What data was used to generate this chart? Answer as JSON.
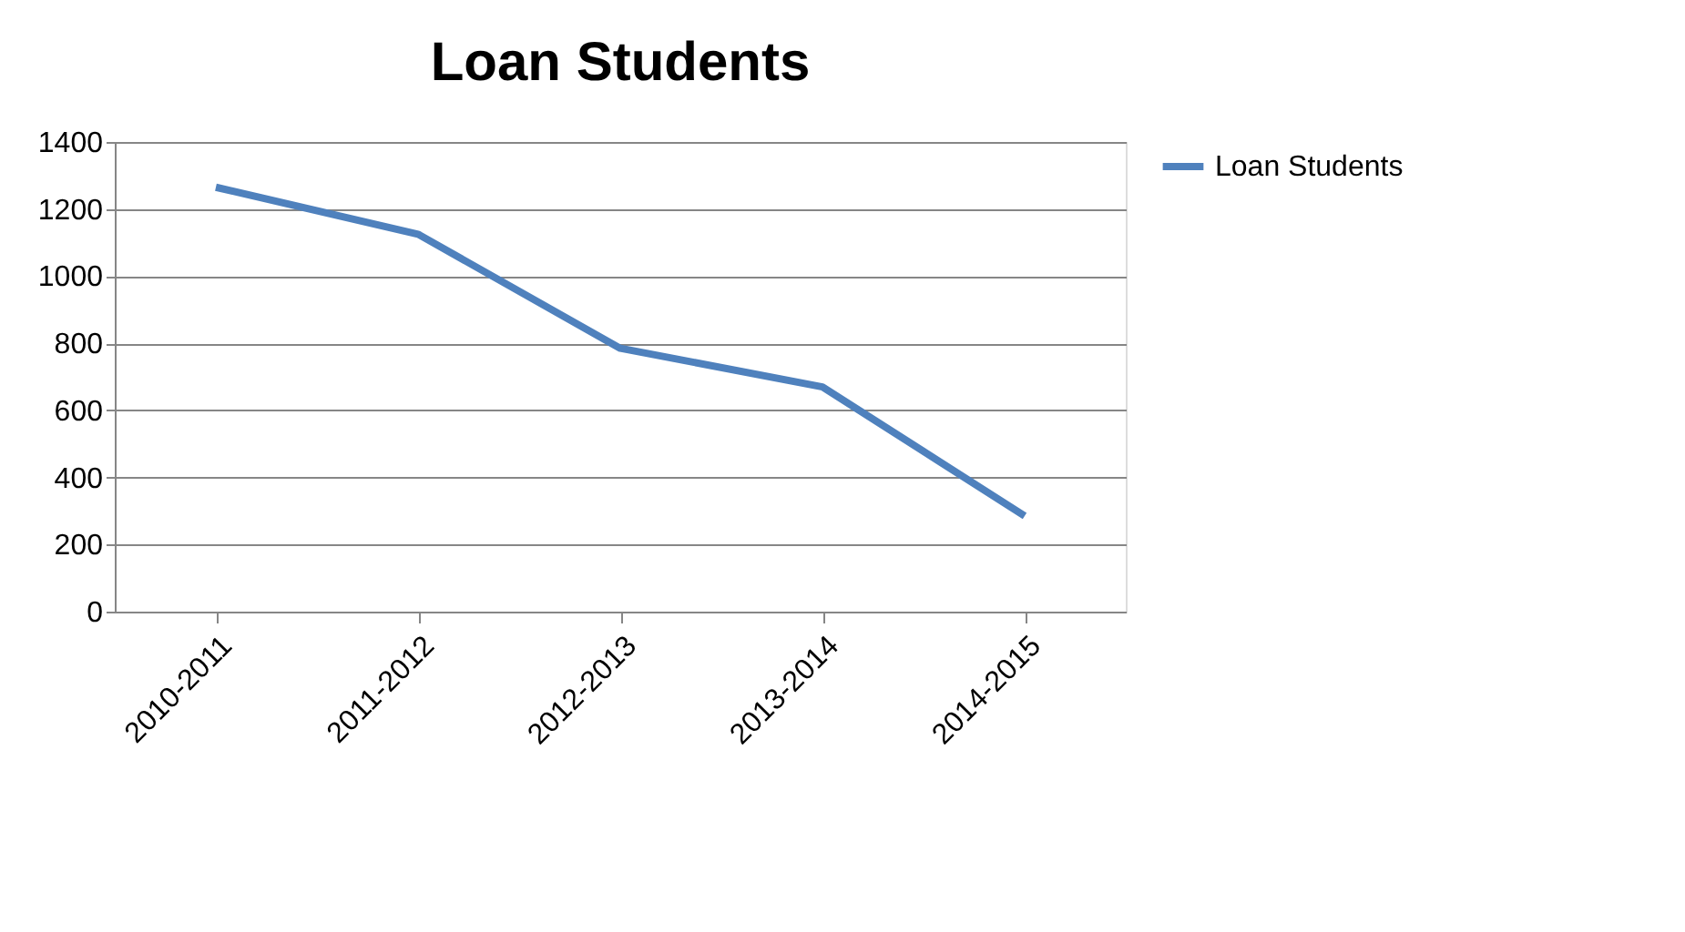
{
  "chart_data": {
    "type": "line",
    "title": "Loan Students",
    "categories": [
      "2010-2011",
      "2011-2012",
      "2012-2013",
      "2013-2014",
      "2014-2015"
    ],
    "series": [
      {
        "name": "Loan Students",
        "color": "#4f81bd",
        "values": [
          1265,
          1125,
          785,
          670,
          285
        ]
      }
    ],
    "ylim": [
      0,
      1400
    ],
    "yticks": [
      0,
      200,
      400,
      600,
      800,
      1000,
      1200,
      1400
    ],
    "grid": "y",
    "legend": "right",
    "marker": "none",
    "line_style": "solid"
  }
}
